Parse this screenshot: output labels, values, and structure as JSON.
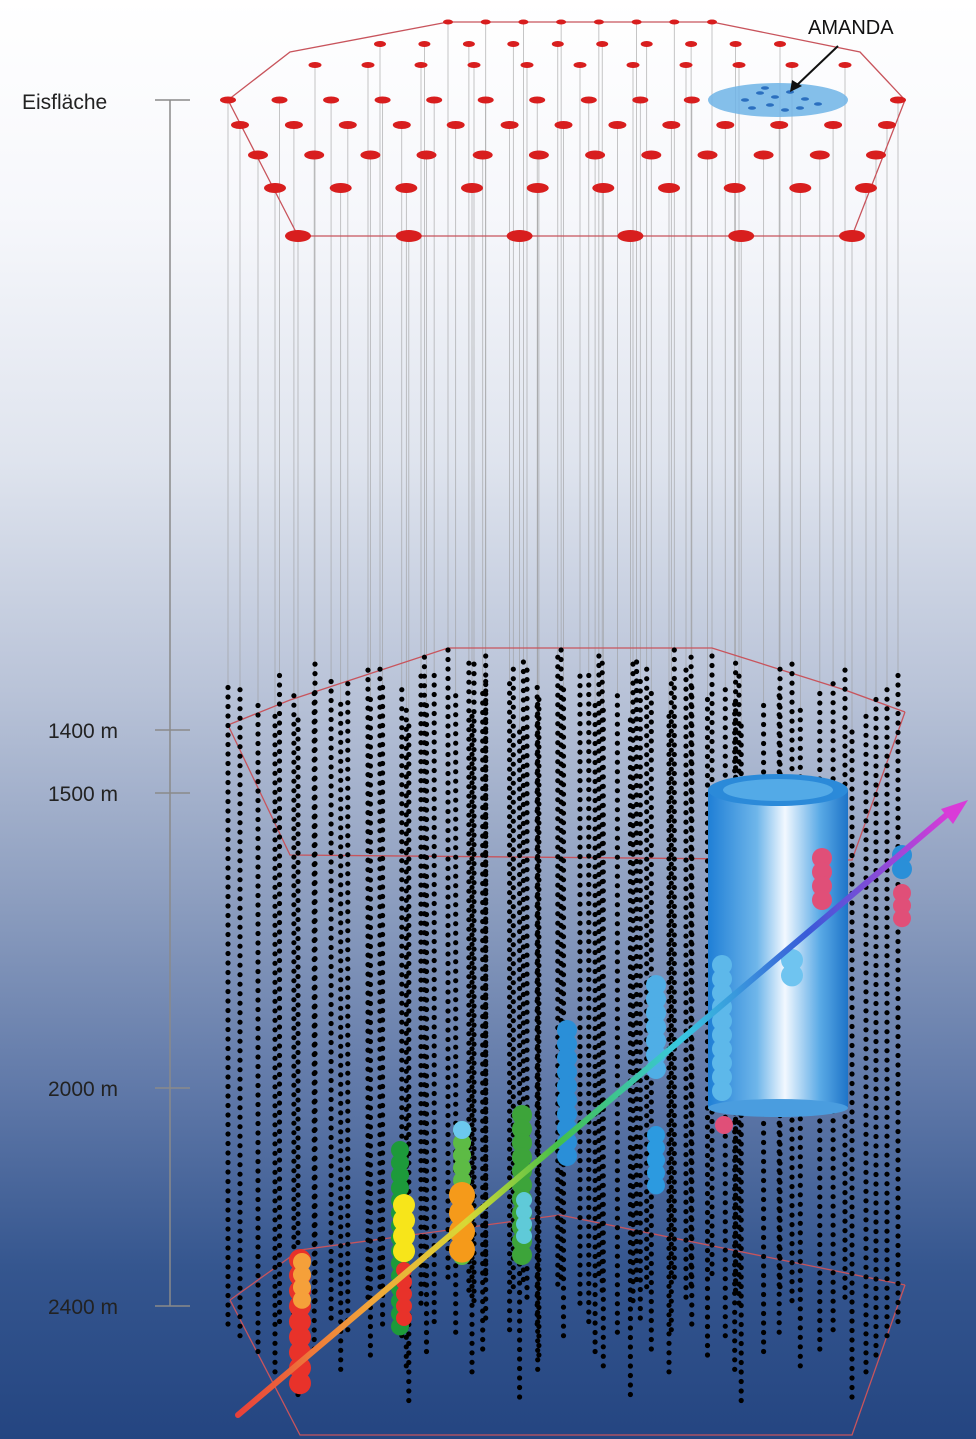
{
  "labels": {
    "surface": "Eisfläche",
    "amanda": "AMANDA"
  },
  "depth_scale": [
    {
      "label": "1400 m",
      "depth_m": 1400
    },
    {
      "label": "1500 m",
      "depth_m": 1500
    },
    {
      "label": "2000 m",
      "depth_m": 2000
    },
    {
      "label": "2400 m",
      "depth_m": 2400
    }
  ],
  "colors": {
    "surface_station": "#d81e1e",
    "sensor": "#000000",
    "frame_line": "#c8545c",
    "amanda_region": "#6fb4e6",
    "track_start": "#e8403a",
    "track_end": "#d93bd8"
  },
  "icons": {
    "amanda_pointer": "arrow-icon",
    "track": "muon-track-arrow-icon"
  }
}
